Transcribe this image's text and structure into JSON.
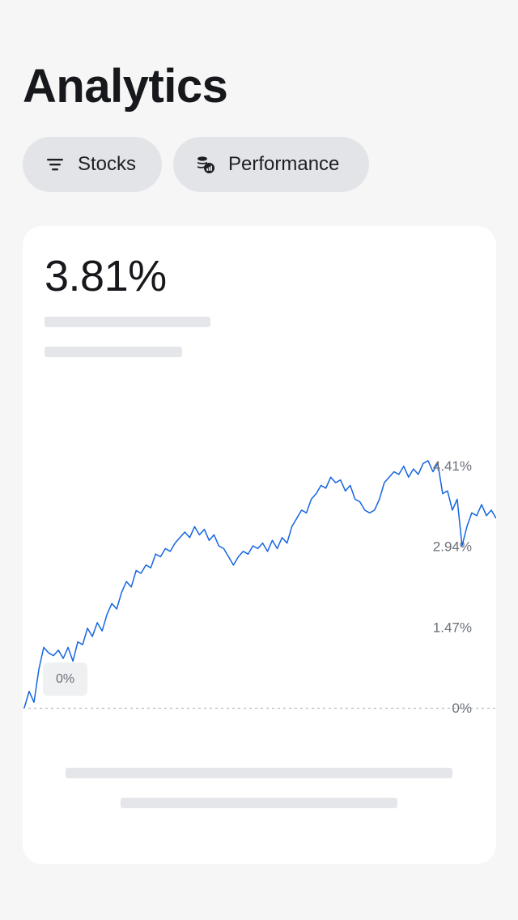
{
  "header": {
    "title": "Analytics"
  },
  "filters": {
    "stocks_label": "Stocks",
    "performance_label": "Performance"
  },
  "card": {
    "value": "3.81%",
    "start_badge": "0%"
  },
  "icons": {
    "stocks": "filter-lines-icon",
    "performance": "coins-chart-icon"
  },
  "colors": {
    "line": "#1565e0",
    "accent_background": "#e2e4e8",
    "skeleton": "#e4e6ea"
  },
  "chart_data": {
    "type": "line",
    "title": "",
    "xlabel": "",
    "ylabel": "",
    "y_ticks": [
      "4.41%",
      "2.94%",
      "1.47%",
      "0%"
    ],
    "ylim": [
      0,
      4.41
    ],
    "grid": false,
    "baseline": 0,
    "series": [
      {
        "values": [
          0,
          0.3,
          0.1,
          0.7,
          1.1,
          1.0,
          0.95,
          1.05,
          0.9,
          1.1,
          0.85,
          1.2,
          1.15,
          1.45,
          1.3,
          1.55,
          1.4,
          1.7,
          1.9,
          1.8,
          2.1,
          2.3,
          2.2,
          2.5,
          2.45,
          2.6,
          2.55,
          2.8,
          2.75,
          2.9,
          2.85,
          3.0,
          3.1,
          3.2,
          3.1,
          3.3,
          3.15,
          3.25,
          3.05,
          3.15,
          2.95,
          2.9,
          2.75,
          2.6,
          2.75,
          2.85,
          2.8,
          2.95,
          2.9,
          3.0,
          2.85,
          3.05,
          2.9,
          3.1,
          3.0,
          3.3,
          3.45,
          3.6,
          3.55,
          3.8,
          3.9,
          4.05,
          4.0,
          4.2,
          4.1,
          4.15,
          3.95,
          4.05,
          3.8,
          3.75,
          3.6,
          3.55,
          3.6,
          3.8,
          4.1,
          4.2,
          4.3,
          4.25,
          4.4,
          4.2,
          4.35,
          4.25,
          4.45,
          4.5,
          4.3,
          4.45,
          3.9,
          3.95,
          3.6,
          3.8,
          2.95,
          3.3,
          3.55,
          3.5,
          3.7,
          3.5,
          3.6,
          3.45
        ]
      }
    ]
  }
}
